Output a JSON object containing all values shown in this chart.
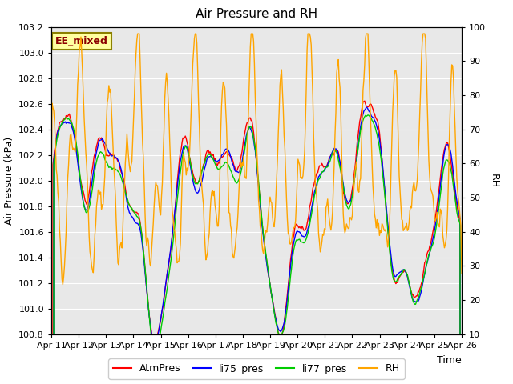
{
  "title": "Air Pressure and RH",
  "xlabel": "Time",
  "ylabel_left": "Air Pressure (kPa)",
  "ylabel_right": "RH",
  "annotation": "EE_mixed",
  "ylim_left": [
    100.8,
    103.2
  ],
  "ylim_right": [
    10,
    100
  ],
  "yticks_left": [
    100.8,
    101.0,
    101.2,
    101.4,
    101.6,
    101.8,
    102.0,
    102.2,
    102.4,
    102.6,
    102.8,
    103.0,
    103.2
  ],
  "yticks_right": [
    10,
    20,
    30,
    40,
    50,
    60,
    70,
    80,
    90,
    100
  ],
  "xtick_labels": [
    "Apr 11",
    "Apr 12",
    "Apr 13",
    "Apr 14",
    "Apr 15",
    "Apr 16",
    "Apr 17",
    "Apr 18",
    "Apr 19",
    "Apr 20",
    "Apr 21",
    "Apr 22",
    "Apr 23",
    "Apr 24",
    "Apr 25",
    "Apr 26"
  ],
  "colors": {
    "AtmPres": "#ff0000",
    "li75_pres": "#0000ff",
    "li77_pres": "#00cc00",
    "RH": "#ffa500"
  },
  "fig_bg_color": "#ffffff",
  "plot_bg_color": "#e8e8e8",
  "grid_color": "#ffffff",
  "n_points": 500
}
